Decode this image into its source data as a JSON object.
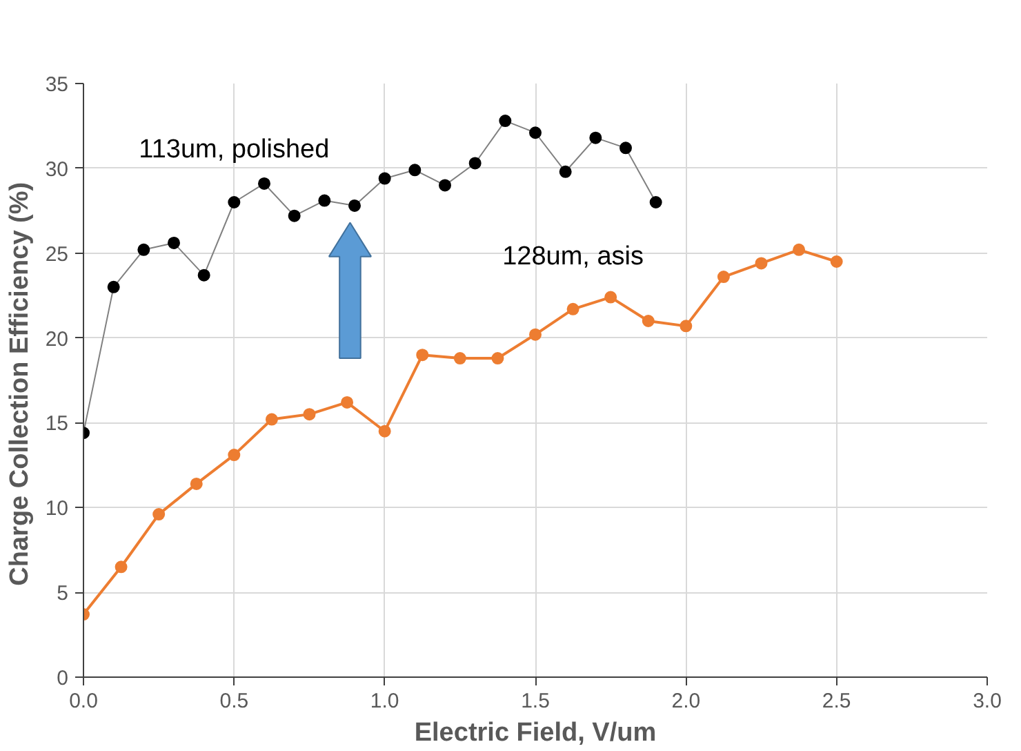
{
  "chart_data": {
    "type": "line",
    "xlabel": "Electric Field, V/um",
    "ylabel": "Charge Collection  Efficiency (%)",
    "xlim": [
      0,
      3
    ],
    "xticks": [
      {
        "value": 0,
        "label": "0.0"
      },
      {
        "value": 0.5,
        "label": "0.5"
      },
      {
        "value": 1,
        "label": "1.0"
      },
      {
        "value": 1.5,
        "label": "1.5"
      },
      {
        "value": 2,
        "label": "2.0"
      },
      {
        "value": 2.5,
        "label": "2.5"
      },
      {
        "value": 3,
        "label": "3.0"
      }
    ],
    "ylim": [
      0,
      35
    ],
    "yticks": [
      0,
      5,
      10,
      15,
      20,
      25,
      30,
      35
    ],
    "grid": true,
    "marker": "circle",
    "line_style": "solid",
    "series": [
      {
        "name": "113um, polished",
        "color": "#000000",
        "x": [
          0,
          0.1,
          0.2,
          0.3,
          0.4,
          0.5,
          0.6,
          0.7,
          0.8,
          0.9,
          1.0,
          1.1,
          1.2,
          1.3,
          1.4,
          1.5,
          1.6,
          1.7,
          1.8,
          1.9
        ],
        "values": [
          14.4,
          23.0,
          25.2,
          25.6,
          23.7,
          28.0,
          29.1,
          27.2,
          28.1,
          27.8,
          29.4,
          29.9,
          29.0,
          30.3,
          32.8,
          32.1,
          29.8,
          31.8,
          31.2,
          28.0
        ]
      },
      {
        "name": "128um, asis",
        "color": "#ed7d31",
        "x": [
          0,
          0.125,
          0.25,
          0.375,
          0.5,
          0.625,
          0.75,
          0.875,
          1.0,
          1.125,
          1.25,
          1.375,
          1.5,
          1.625,
          1.75,
          1.875,
          2.0,
          2.125,
          2.25,
          2.375,
          2.5
        ],
        "values": [
          3.7,
          6.5,
          9.6,
          11.4,
          13.1,
          15.2,
          15.5,
          16.2,
          14.5,
          19.0,
          18.8,
          18.8,
          20.2,
          21.7,
          22.4,
          21.0,
          20.7,
          23.6,
          24.4,
          25.2,
          24.5
        ]
      }
    ]
  }
}
